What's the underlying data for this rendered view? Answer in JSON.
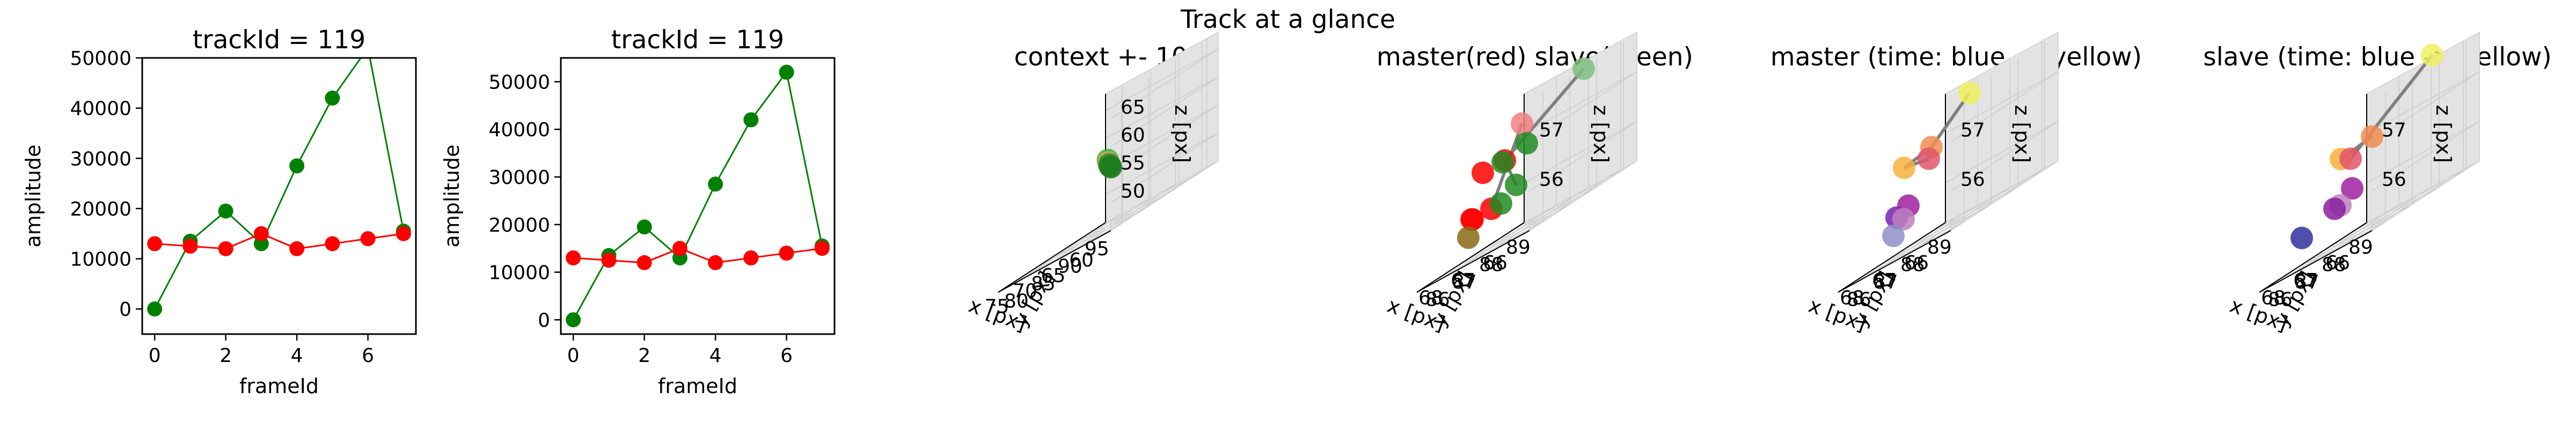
{
  "figure": {
    "suptitle": "Track at a glance"
  },
  "chart_data": [
    {
      "type": "line",
      "title": "trackId = 119",
      "xlabel": "frameId",
      "ylabel": "amplitude",
      "x": [
        0,
        1,
        2,
        3,
        4,
        5,
        6,
        7
      ],
      "xlim": [
        -0.35,
        7.35
      ],
      "ylim": [
        -5000,
        50000
      ],
      "xticks": [
        0,
        2,
        4,
        6
      ],
      "yticks": [
        0,
        10000,
        20000,
        30000,
        40000,
        50000
      ],
      "colors": {
        "green": "#008000",
        "red": "#ff0000"
      },
      "series": [
        {
          "color": "green",
          "values": [
            0,
            13500,
            19500,
            13000,
            28500,
            42000,
            52000,
            15500
          ]
        },
        {
          "color": "red",
          "values": [
            13000,
            12500,
            12000,
            15000,
            12000,
            13000,
            14000,
            15000
          ]
        }
      ]
    },
    {
      "type": "line",
      "title": "trackId = 119",
      "xlabel": "frameId",
      "ylabel": "amplitude",
      "x": [
        0,
        1,
        2,
        3,
        4,
        5,
        6,
        7
      ],
      "xlim": [
        -0.35,
        7.35
      ],
      "ylim": [
        -3000,
        55000
      ],
      "xticks": [
        0,
        2,
        4,
        6
      ],
      "yticks": [
        0,
        10000,
        20000,
        30000,
        40000,
        50000
      ],
      "colors": {
        "green": "#008000",
        "red": "#ff0000"
      },
      "series": [
        {
          "color": "green",
          "values": [
            0,
            13500,
            19500,
            13000,
            28500,
            42000,
            52000,
            15500
          ]
        },
        {
          "color": "red",
          "values": [
            13000,
            12500,
            12000,
            15000,
            12000,
            13000,
            14000,
            15000
          ]
        }
      ]
    },
    {
      "type": "scatter",
      "title": "context +- 10px",
      "xlabel": "x [px]",
      "ylabel": "y [px]",
      "zlabel": "z [px]",
      "xlim": [
        58,
        78
      ],
      "ylim": [
        78,
        98
      ],
      "zlim": [
        45,
        68
      ],
      "xticks": [
        60,
        65,
        70,
        75
      ],
      "yticks": [
        80,
        85,
        90,
        95
      ],
      "zticks": [
        50,
        55,
        60,
        65
      ],
      "points": [
        {
          "x": 67.3,
          "y": 87.2,
          "z": 57.0,
          "color": "#3cb043"
        },
        {
          "x": 67.5,
          "y": 87.5,
          "z": 56.5,
          "color": "#d4a24a"
        },
        {
          "x": 67.7,
          "y": 87.9,
          "z": 56.0,
          "color": "#2e8b2e"
        },
        {
          "x": 67.9,
          "y": 88.2,
          "z": 55.6,
          "color": "#228b22"
        },
        {
          "x": 68.0,
          "y": 88.5,
          "z": 55.3,
          "color": "#1e7a1e"
        }
      ]
    },
    {
      "type": "scatter",
      "title": "master(red) slave(green)",
      "xlabel": "x [px]",
      "ylabel": "y [px]",
      "zlabel": "z [px]",
      "xlim": [
        65.5,
        69
      ],
      "ylim": [
        85.5,
        89.5
      ],
      "zlim": [
        55.2,
        57.8
      ],
      "xticks": [
        66,
        67,
        68
      ],
      "yticks": [
        86,
        87,
        88,
        89
      ],
      "zticks": [
        56,
        57
      ],
      "connections": [
        [
          0,
          3
        ],
        [
          3,
          6
        ],
        [
          7,
          1
        ]
      ],
      "points": [
        {
          "x": 66.4,
          "y": 88.6,
          "z": 57.7,
          "color": "#7fbf7f"
        },
        {
          "x": 67.9,
          "y": 88.1,
          "z": 57.3,
          "color": "#f08080"
        },
        {
          "x": 67.0,
          "y": 87.2,
          "z": 56.9,
          "color": "#228b22"
        },
        {
          "x": 67.6,
          "y": 87.1,
          "z": 56.8,
          "color": "#ff0000"
        },
        {
          "x": 68.2,
          "y": 87.0,
          "z": 56.8,
          "color": "#ff0000"
        },
        {
          "x": 67.5,
          "y": 86.9,
          "z": 56.8,
          "color": "#228b22"
        },
        {
          "x": 67.0,
          "y": 86.8,
          "z": 56.2,
          "color": "#228b22"
        },
        {
          "x": 67.6,
          "y": 86.6,
          "z": 56.0,
          "color": "#ff0000"
        },
        {
          "x": 68.1,
          "y": 86.5,
          "z": 56.0,
          "color": "#ff0000"
        },
        {
          "x": 67.3,
          "y": 86.6,
          "z": 56.0,
          "color": "#228b22"
        },
        {
          "x": 68.3,
          "y": 86.7,
          "z": 56.0,
          "color": "#ff0000"
        },
        {
          "x": 67.9,
          "y": 86.1,
          "z": 55.7,
          "color": "#8b6914"
        }
      ]
    },
    {
      "type": "scatter",
      "title": "master (time: blue -> yellow)",
      "xlabel": "x [px]",
      "ylabel": "y [px]",
      "zlabel": "z [px]",
      "xlim": [
        65.5,
        69
      ],
      "ylim": [
        85.5,
        89.5
      ],
      "zlim": [
        55.2,
        57.8
      ],
      "xticks": [
        66,
        67,
        68
      ],
      "yticks": [
        86,
        87,
        88,
        89
      ],
      "zticks": [
        56,
        57
      ],
      "connections": [
        [
          0,
          1
        ],
        [
          1,
          2
        ],
        [
          2,
          3
        ]
      ],
      "points": [
        {
          "x": 67.5,
          "y": 88.6,
          "z": 57.6,
          "color": "#f0f060"
        },
        {
          "x": 67.6,
          "y": 87.3,
          "z": 57.0,
          "color": "#f08c50"
        },
        {
          "x": 68.2,
          "y": 87.0,
          "z": 56.9,
          "color": "#f7b040"
        },
        {
          "x": 67.6,
          "y": 87.2,
          "z": 56.8,
          "color": "#e0566a"
        },
        {
          "x": 67.9,
          "y": 86.8,
          "z": 56.1,
          "color": "#a020a0"
        },
        {
          "x": 68.1,
          "y": 86.6,
          "z": 56.0,
          "color": "#7a20b0"
        },
        {
          "x": 67.8,
          "y": 86.5,
          "z": 55.9,
          "color": "#c080c0"
        },
        {
          "x": 67.7,
          "y": 86.0,
          "z": 55.7,
          "color": "#9090c8"
        }
      ]
    },
    {
      "type": "scatter",
      "title": "slave (time: blue -> yellow)",
      "xlabel": "x [px]",
      "ylabel": "y [px]",
      "zlabel": "z [px]",
      "xlim": [
        65.5,
        69
      ],
      "ylim": [
        85.5,
        89.5
      ],
      "zlim": [
        55.2,
        57.8
      ],
      "xticks": [
        66,
        67,
        68
      ],
      "yticks": [
        86,
        87,
        88,
        89
      ],
      "zticks": [
        56,
        57
      ],
      "connections": [
        [
          0,
          3
        ],
        [
          3,
          2
        ],
        [
          1,
          2
        ]
      ],
      "points": [
        {
          "x": 66.3,
          "y": 88.7,
          "z": 57.9,
          "color": "#f0f060"
        },
        {
          "x": 67.0,
          "y": 87.3,
          "z": 57.0,
          "color": "#f08c50"
        },
        {
          "x": 67.8,
          "y": 87.1,
          "z": 56.9,
          "color": "#f7b040"
        },
        {
          "x": 67.5,
          "y": 87.1,
          "z": 56.8,
          "color": "#e0566a"
        },
        {
          "x": 67.2,
          "y": 86.8,
          "z": 56.2,
          "color": "#a020a0"
        },
        {
          "x": 67.4,
          "y": 86.6,
          "z": 56.0,
          "color": "#c080c0"
        },
        {
          "x": 67.5,
          "y": 86.5,
          "z": 56.0,
          "color": "#8a20a0"
        },
        {
          "x": 68.1,
          "y": 86.0,
          "z": 55.8,
          "color": "#3030a0"
        }
      ]
    }
  ]
}
